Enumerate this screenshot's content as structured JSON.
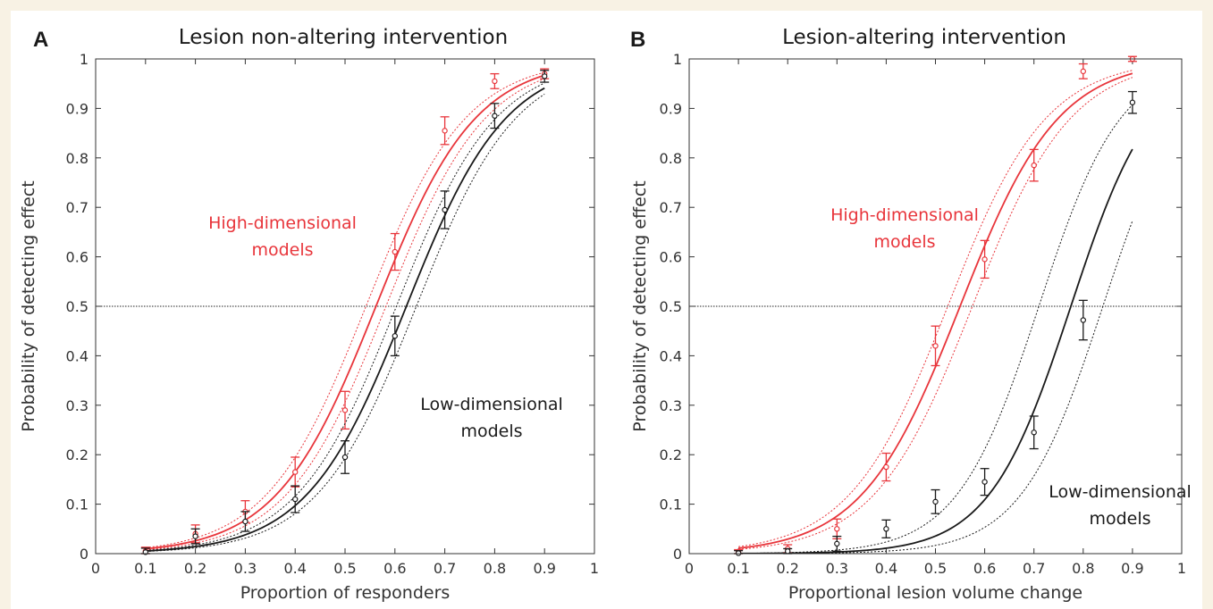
{
  "chart_data": [
    {
      "type": "scatter",
      "panel_label": "A",
      "title": "Lesion non-altering intervention",
      "xlabel": "Proportion of responders",
      "ylabel": "Probability of detecting effect",
      "xlim": [
        0,
        1
      ],
      "ylim": [
        0,
        1
      ],
      "xticks": [
        "0",
        "0.1",
        "0.2",
        "0.3",
        "0.4",
        "0.5",
        "0.6",
        "0.7",
        "0.8",
        "0.9",
        "1"
      ],
      "yticks": [
        "0",
        "0.1",
        "0.2",
        "0.3",
        "0.4",
        "0.5",
        "0.6",
        "0.7",
        "0.8",
        "0.9",
        "1"
      ],
      "reference_line_y": 0.5,
      "series": [
        {
          "name": "High-dimensional models",
          "color": "#e8353b",
          "x": [
            0.1,
            0.2,
            0.3,
            0.4,
            0.5,
            0.6,
            0.7,
            0.8,
            0.9
          ],
          "y": [
            0.005,
            0.04,
            0.085,
            0.165,
            0.29,
            0.61,
            0.855,
            0.955,
            0.97
          ],
          "err": [
            0.008,
            0.018,
            0.022,
            0.03,
            0.038,
            0.037,
            0.028,
            0.015,
            0.01
          ],
          "fit": {
            "x50": 0.562,
            "k": 10.0,
            "band": 0.02
          }
        },
        {
          "name": "Low-dimensional models",
          "color": "#1a1a1a",
          "x": [
            0.1,
            0.2,
            0.3,
            0.4,
            0.5,
            0.6,
            0.7,
            0.8,
            0.9
          ],
          "y": [
            0.003,
            0.035,
            0.065,
            0.11,
            0.195,
            0.44,
            0.695,
            0.885,
            0.965
          ],
          "err": [
            0.008,
            0.015,
            0.02,
            0.027,
            0.033,
            0.04,
            0.038,
            0.025,
            0.012
          ],
          "fit": {
            "x50": 0.623,
            "k": 10.0,
            "band": 0.02
          }
        }
      ],
      "annotations": [
        {
          "lines": [
            "High-dimensional",
            "models"
          ],
          "color": "#e8353b"
        },
        {
          "lines": [
            "Low-dimensional",
            "models"
          ],
          "color": "#1a1a1a"
        }
      ]
    },
    {
      "type": "scatter",
      "panel_label": "B",
      "title": "Lesion-altering intervention",
      "xlabel": "Proportional lesion volume change",
      "ylabel": "Probability of detecting effect",
      "xlim": [
        0,
        1
      ],
      "ylim": [
        0,
        1
      ],
      "xticks": [
        "0",
        "0.1",
        "0.2",
        "0.3",
        "0.4",
        "0.5",
        "0.6",
        "0.7",
        "0.8",
        "0.9",
        "1"
      ],
      "yticks": [
        "0",
        "0.1",
        "0.2",
        "0.3",
        "0.4",
        "0.5",
        "0.6",
        "0.7",
        "0.8",
        "0.9",
        "1"
      ],
      "reference_line_y": 0.5,
      "series": [
        {
          "name": "High-dimensional models",
          "color": "#e8353b",
          "x": [
            0.1,
            0.2,
            0.3,
            0.4,
            0.5,
            0.6,
            0.7,
            0.8,
            0.9
          ],
          "y": [
            0.003,
            0.01,
            0.05,
            0.175,
            0.42,
            0.595,
            0.785,
            0.975,
            1.0
          ],
          "err": [
            0.005,
            0.008,
            0.02,
            0.028,
            0.04,
            0.038,
            0.032,
            0.015,
            0.005
          ],
          "fit": {
            "x50": 0.55,
            "k": 10.0,
            "band": 0.025
          }
        },
        {
          "name": "Low-dimensional models",
          "color": "#1a1a1a",
          "x": [
            0.1,
            0.2,
            0.3,
            0.4,
            0.5,
            0.6,
            0.7,
            0.8,
            0.9
          ],
          "y": [
            0.001,
            0.005,
            0.02,
            0.05,
            0.105,
            0.145,
            0.245,
            0.472,
            0.912
          ],
          "err": [
            0.005,
            0.005,
            0.015,
            0.018,
            0.024,
            0.027,
            0.033,
            0.04,
            0.022
          ],
          "fit": {
            "x50": 0.775,
            "k": 12.0,
            "band": 0.065
          }
        }
      ],
      "annotations": [
        {
          "lines": [
            "High-dimensional",
            "models"
          ],
          "color": "#e8353b"
        },
        {
          "lines": [
            "Low-dimensional",
            "models"
          ],
          "color": "#1a1a1a"
        }
      ]
    }
  ]
}
